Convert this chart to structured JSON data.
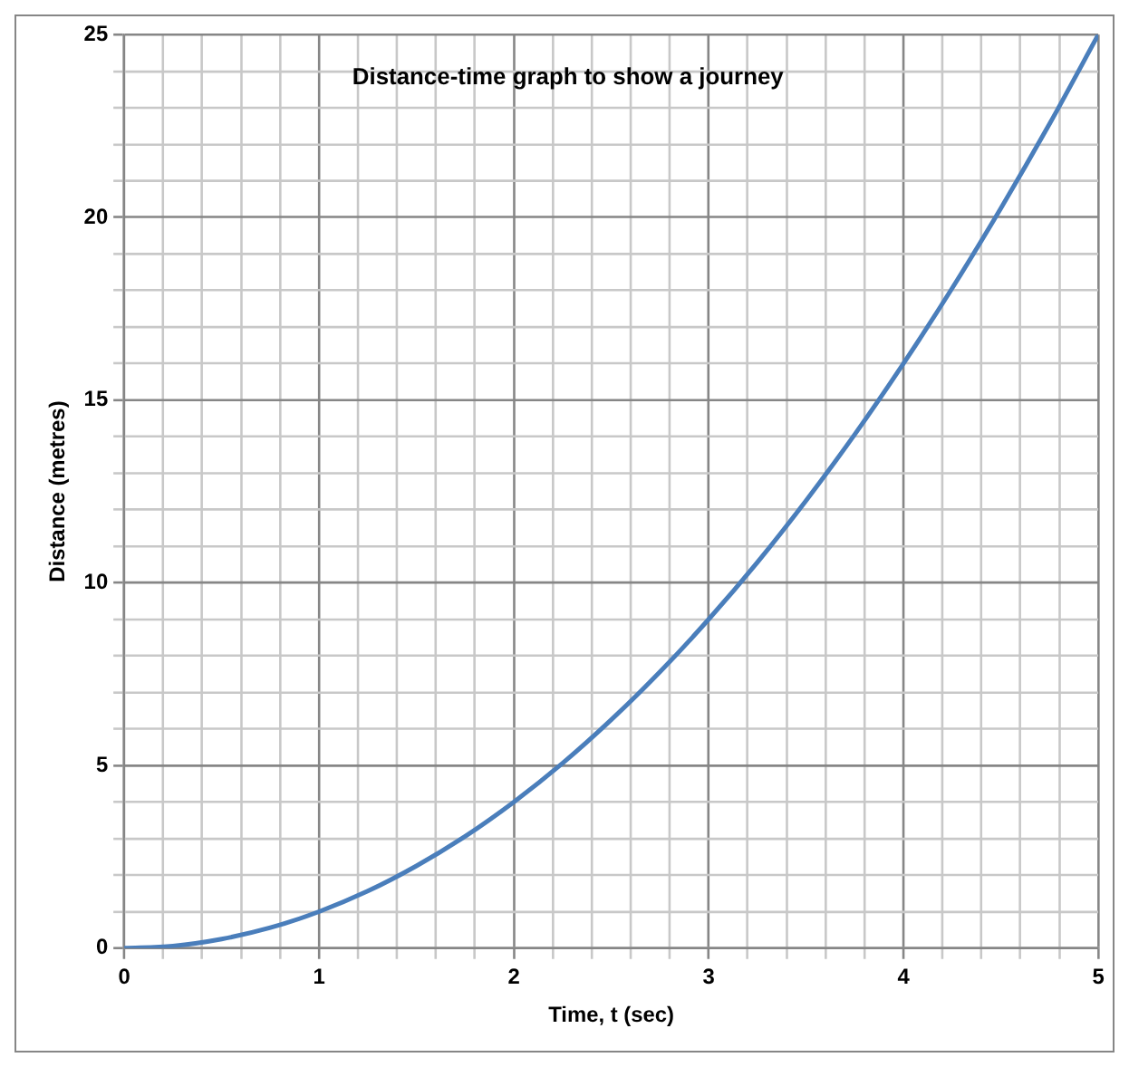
{
  "chart_data": {
    "type": "line",
    "title": "Distance-time graph to show a journey",
    "xlabel": "Time, t (sec)",
    "ylabel": "Distance (metres)",
    "x": [
      0,
      0.25,
      0.5,
      0.75,
      1,
      1.25,
      1.5,
      1.75,
      2,
      2.25,
      2.5,
      2.75,
      3,
      3.25,
      3.5,
      3.75,
      4,
      4.25,
      4.5,
      4.75,
      5
    ],
    "series": [
      {
        "color": "#4a7ebb",
        "values": [
          0,
          0.06,
          0.25,
          0.56,
          1,
          1.56,
          2.25,
          3.06,
          4,
          5.06,
          6.25,
          7.56,
          9,
          10.56,
          12.25,
          14.06,
          16,
          18.06,
          20.25,
          22.56,
          25
        ]
      }
    ],
    "xlim": [
      0,
      5
    ],
    "ylim": [
      0,
      25
    ],
    "xticks": [
      0,
      {
        "value": 0.2,
        "label": null
      },
      {
        "value": 0.4,
        "label": null
      },
      {
        "value": 0.6,
        "label": null
      },
      {
        "value": 0.8,
        "label": null
      },
      1,
      {
        "value": 1.2,
        "label": null
      },
      {
        "value": 1.4,
        "label": null
      },
      {
        "value": 1.6,
        "label": null
      },
      {
        "value": 1.8,
        "label": null
      },
      2,
      {
        "value": 2.2,
        "label": null
      },
      {
        "value": 2.4,
        "label": null
      },
      {
        "value": 2.6,
        "label": null
      },
      {
        "value": 2.8,
        "label": null
      },
      3,
      {
        "value": 3.2,
        "label": null
      },
      {
        "value": 3.4,
        "label": null
      },
      {
        "value": 3.6,
        "label": null
      },
      {
        "value": 3.8,
        "label": null
      },
      4,
      {
        "value": 4.2,
        "label": null
      },
      {
        "value": 4.4,
        "label": null
      },
      {
        "value": 4.6,
        "label": null
      },
      {
        "value": 4.8,
        "label": null
      },
      5
    ],
    "yticks": [
      0,
      {
        "value": 1,
        "label": null
      },
      {
        "value": 2,
        "label": null
      },
      {
        "value": 3,
        "label": null
      },
      {
        "value": 4,
        "label": null
      },
      5,
      {
        "value": 6,
        "label": null
      },
      {
        "value": 7,
        "label": null
      },
      {
        "value": 8,
        "label": null
      },
      {
        "value": 9,
        "label": null
      },
      10,
      {
        "value": 11,
        "label": null
      },
      {
        "value": 12,
        "label": null
      },
      {
        "value": 13,
        "label": null
      },
      {
        "value": 14,
        "label": null
      },
      15,
      {
        "value": 16,
        "label": null
      },
      {
        "value": 17,
        "label": null
      },
      {
        "value": 18,
        "label": null
      },
      {
        "value": 19,
        "label": null
      },
      20,
      {
        "value": 21,
        "label": null
      },
      {
        "value": 22,
        "label": null
      },
      {
        "value": 23,
        "label": null
      },
      {
        "value": 24,
        "label": null
      },
      25
    ],
    "grid": true,
    "marker": "none",
    "line_style": "solid"
  }
}
